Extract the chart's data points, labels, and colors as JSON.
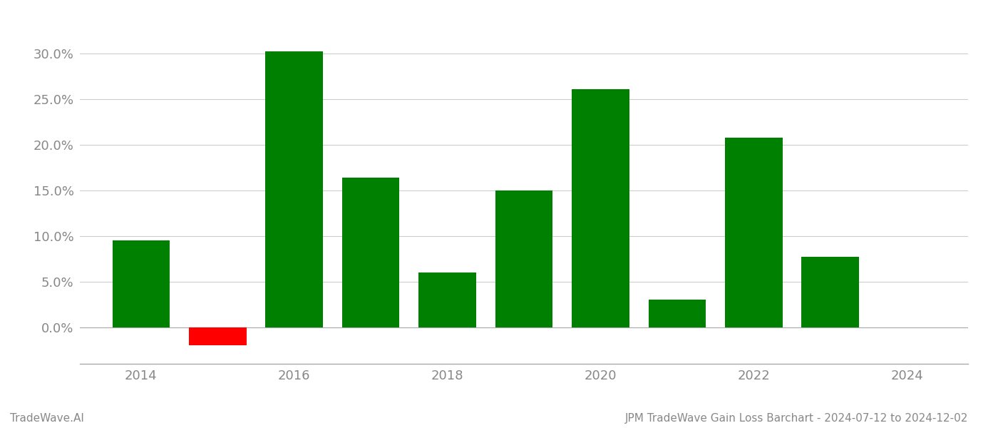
{
  "years": [
    2014,
    2015,
    2016,
    2017,
    2018,
    2019,
    2020,
    2021,
    2022,
    2023
  ],
  "values": [
    0.095,
    -0.02,
    0.302,
    0.164,
    0.06,
    0.15,
    0.261,
    0.03,
    0.208,
    0.077
  ],
  "colors": [
    "#008000",
    "#ff0000",
    "#008000",
    "#008000",
    "#008000",
    "#008000",
    "#008000",
    "#008000",
    "#008000",
    "#008000"
  ],
  "title": "JPM TradeWave Gain Loss Barchart - 2024-07-12 to 2024-12-02",
  "watermark": "TradeWave.AI",
  "ylim_min": -0.04,
  "ylim_max": 0.335,
  "bar_width": 0.75,
  "xlim_min": 2013.2,
  "xlim_max": 2024.8,
  "background_color": "#ffffff",
  "grid_color": "#cccccc",
  "tick_label_color": "#888888",
  "title_color": "#888888",
  "watermark_color": "#888888",
  "title_fontsize": 11,
  "watermark_fontsize": 11,
  "tick_fontsize": 13,
  "ytick_positions": [
    0.0,
    0.05,
    0.1,
    0.15,
    0.2,
    0.25,
    0.3
  ],
  "xtick_positions": [
    2014,
    2016,
    2018,
    2020,
    2022,
    2024
  ]
}
